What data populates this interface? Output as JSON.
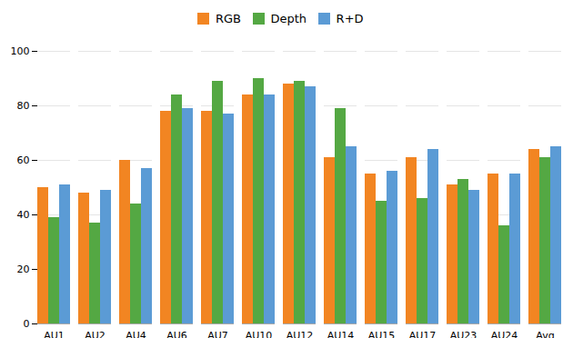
{
  "chart_data": {
    "type": "bar",
    "categories": [
      "AU1",
      "AU2",
      "AU4",
      "AU6",
      "AU7",
      "AU10",
      "AU12",
      "AU14",
      "AU15",
      "AU17",
      "AU23",
      "AU24",
      "Avg"
    ],
    "series": [
      {
        "name": "RGB",
        "color": "#F28522",
        "values": [
          50,
          48,
          60,
          78,
          78,
          84,
          88,
          61,
          55,
          61,
          51,
          55,
          64
        ]
      },
      {
        "name": "Depth",
        "color": "#54A843",
        "values": [
          39,
          37,
          44,
          84,
          89,
          90,
          89,
          79,
          45,
          46,
          53,
          36,
          61
        ]
      },
      {
        "name": "R+D",
        "color": "#5B9BD5",
        "values": [
          51,
          49,
          57,
          79,
          77,
          84,
          87,
          65,
          56,
          64,
          49,
          55,
          65
        ]
      }
    ],
    "ylim": [
      0,
      100
    ],
    "yticks": [
      0,
      20,
      40,
      60,
      80,
      100
    ],
    "grid": true,
    "legend": "top"
  }
}
